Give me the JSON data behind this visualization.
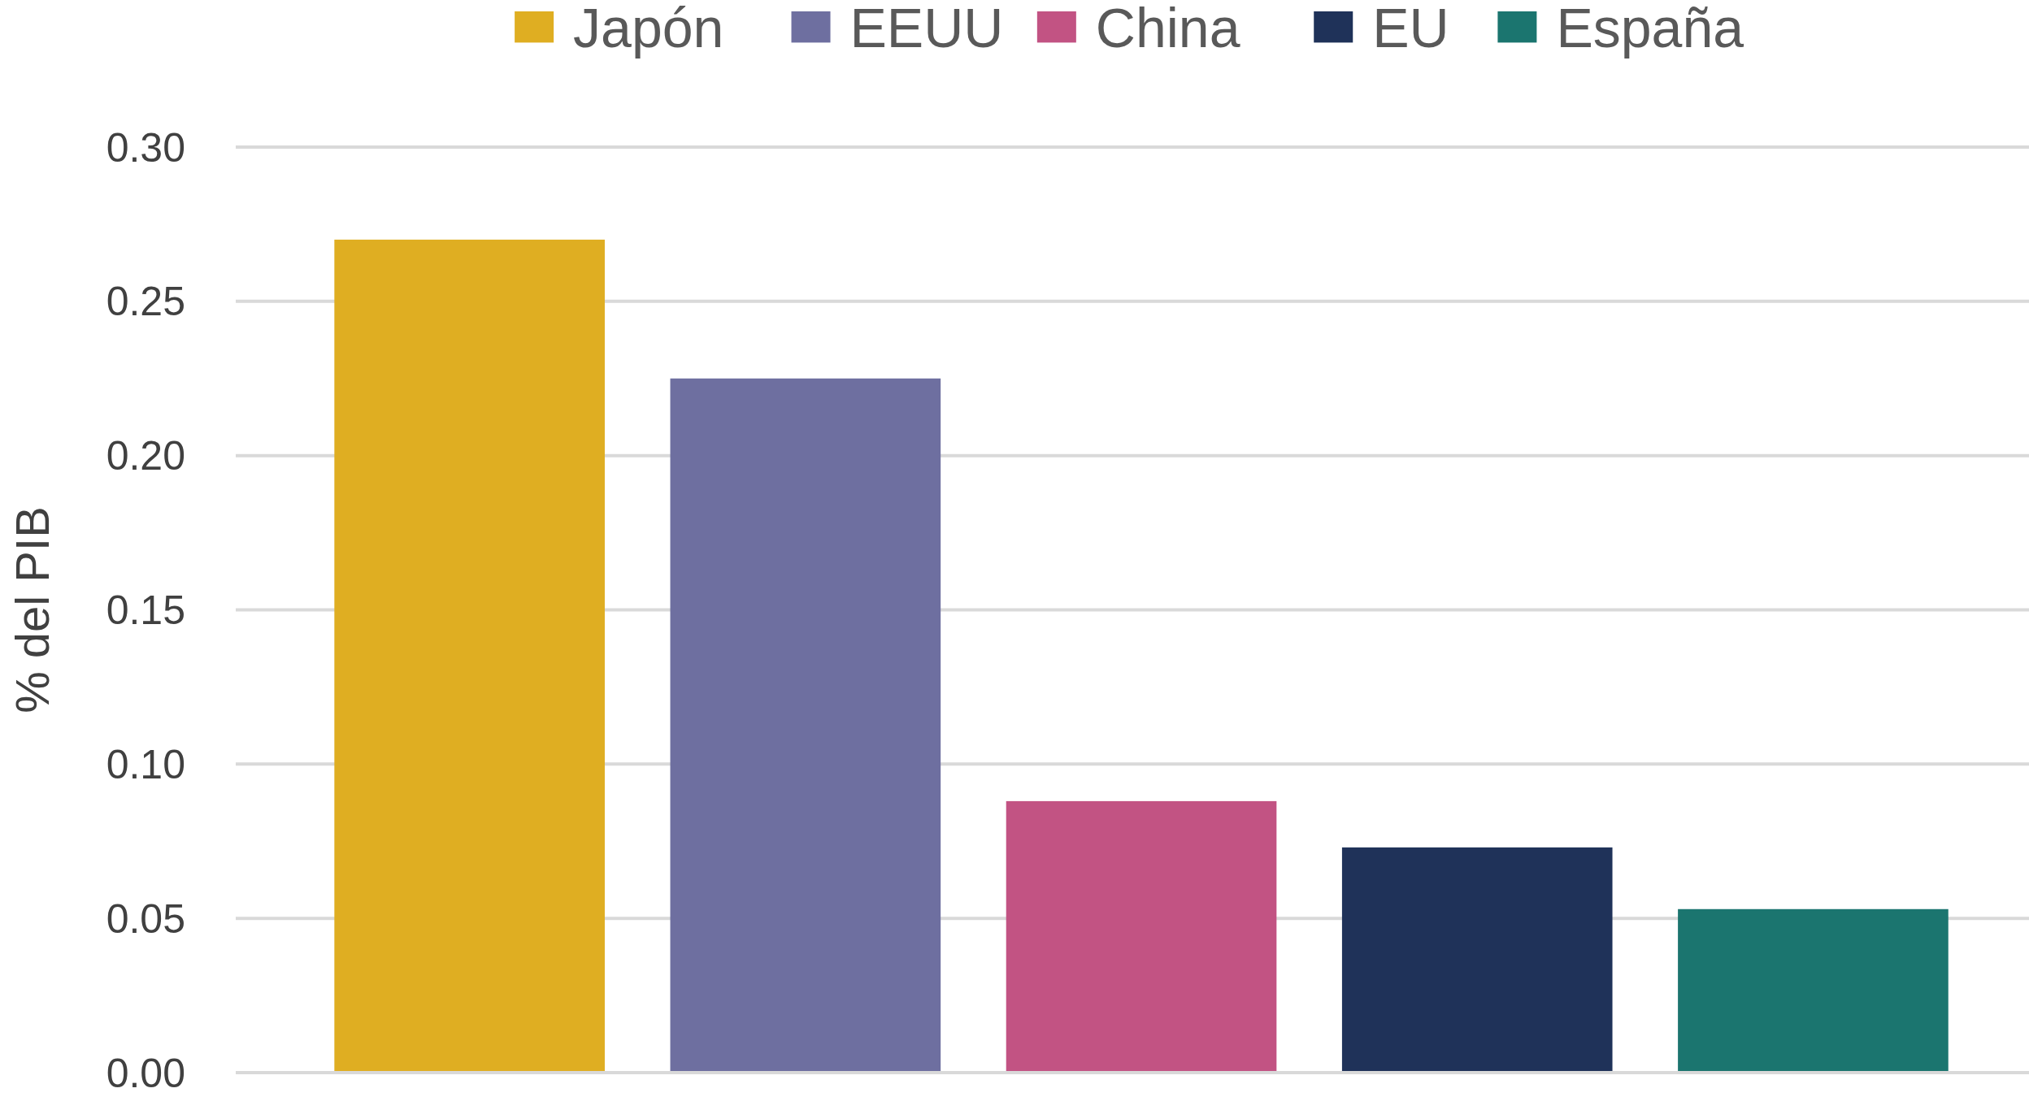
{
  "chart_data": {
    "type": "bar",
    "ylabel": "% del PIB",
    "categories": [
      null
    ],
    "series": [
      {
        "name": "Japón",
        "color": "#dfae22",
        "values": [
          0.27
        ]
      },
      {
        "name": "EEUU",
        "color": "#6e6fa0",
        "values": [
          0.225
        ]
      },
      {
        "name": "China",
        "color": "#c25383",
        "values": [
          0.088
        ]
      },
      {
        "name": "EU",
        "color": "#1f3259",
        "values": [
          0.073
        ]
      },
      {
        "name": "España",
        "color": "#1b756f",
        "values": [
          0.053
        ]
      }
    ],
    "ylim": [
      0,
      0.3
    ],
    "yticks": [
      {
        "value": 0,
        "label": "0.00"
      },
      {
        "value": 0.05,
        "label": "0.05"
      },
      {
        "value": 0.1,
        "label": "0.10"
      },
      {
        "value": 0.15,
        "label": "0.15"
      },
      {
        "value": 0.2,
        "label": "0.20"
      },
      {
        "value": 0.25,
        "label": "0.25"
      },
      {
        "value": 0.3,
        "label": "0.30"
      }
    ],
    "grid": "y",
    "legend": "top"
  }
}
